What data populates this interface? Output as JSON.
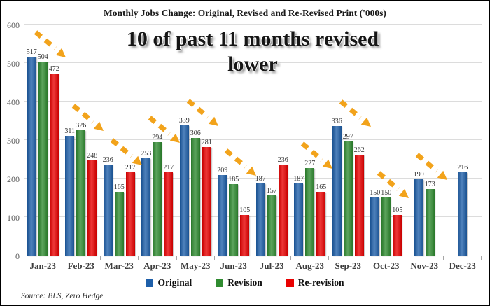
{
  "header": {
    "title": "Monthly Jobs Change: Original, Revised and Re-Revised Print ('000s)"
  },
  "annotation": {
    "line1": "10 of past 11 months revised",
    "line2": "lower"
  },
  "source": "Source: BLS, Zero Hedge",
  "colors": {
    "original": "#1E5FA9",
    "revision": "#2F8B30",
    "re_revision": "#E90000",
    "arrow": "#F2A31B",
    "gridline": "#DCDCDC"
  },
  "chart_data": {
    "type": "bar",
    "title": "Monthly Jobs Change: Original, Revised and Re-Revised Print ('000s)",
    "categories": [
      "Jan-23",
      "Feb-23",
      "Mar-23",
      "Apr-23",
      "May-23",
      "Jun-23",
      "Jul-23",
      "Aug-23",
      "Sep-23",
      "Oct-23",
      "Nov-23",
      "Dec-23"
    ],
    "series": [
      {
        "name": "Original",
        "color": "#1E5FA9",
        "values": [
          517,
          311,
          236,
          253,
          339,
          209,
          187,
          187,
          336,
          150,
          199,
          216
        ]
      },
      {
        "name": "Revision",
        "color": "#2F8B30",
        "values": [
          504,
          326,
          165,
          294,
          306,
          185,
          157,
          227,
          297,
          150,
          173,
          null
        ]
      },
      {
        "name": "Re-revision",
        "color": "#E90000",
        "values": [
          472,
          248,
          217,
          217,
          281,
          105,
          236,
          165,
          262,
          105,
          null,
          null
        ]
      }
    ],
    "xlabel": "",
    "ylabel": "",
    "ylim": [
      0,
      600
    ],
    "yticks": [
      0,
      100,
      200,
      300,
      400,
      500,
      600
    ],
    "grid": true,
    "legend_position": "bottom",
    "annotations": [
      "10 of past 11 months revised lower"
    ],
    "arrows_revised_lower": [
      true,
      true,
      true,
      true,
      true,
      true,
      false,
      true,
      true,
      true,
      true,
      false
    ]
  }
}
